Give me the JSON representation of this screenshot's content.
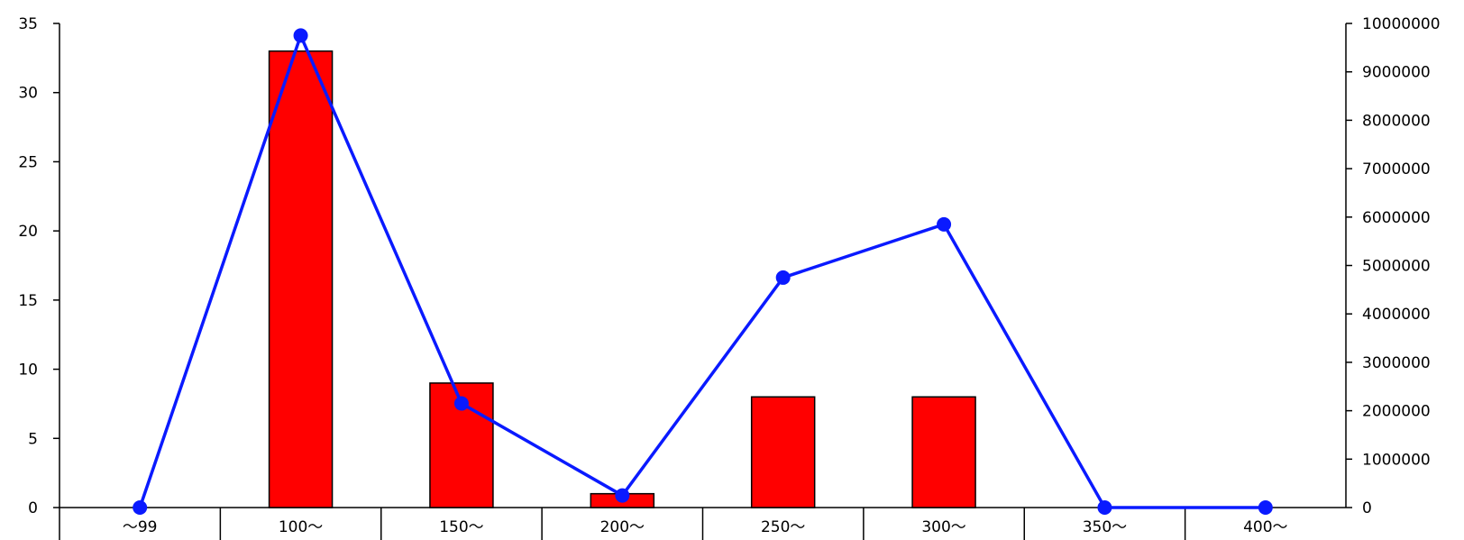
{
  "chart_data": {
    "type": "bar",
    "categories": [
      "～99",
      "100～",
      "150～",
      "200～",
      "250～",
      "300～",
      "350～",
      "400～"
    ],
    "series": [
      {
        "type": "bar",
        "axis": "left",
        "values": [
          0,
          33,
          9,
          1,
          8,
          8,
          0,
          0
        ]
      },
      {
        "type": "line",
        "axis": "right",
        "values": [
          0,
          9750000,
          2150000,
          250000,
          4750000,
          5850000,
          0,
          0
        ]
      }
    ],
    "y_left": {
      "range": [
        0,
        35
      ],
      "ticks": [
        0,
        5,
        10,
        15,
        20,
        25,
        30,
        35
      ]
    },
    "y_right": {
      "range": [
        0,
        10000000
      ],
      "ticks": [
        0,
        1000000,
        2000000,
        3000000,
        4000000,
        5000000,
        6000000,
        7000000,
        8000000,
        9000000,
        10000000
      ]
    },
    "title": "",
    "xlabel": "",
    "ylabel": "",
    "grid": false,
    "legend": "none",
    "colors": {
      "bar": "#ff0000",
      "line": "#0a1aff"
    }
  }
}
